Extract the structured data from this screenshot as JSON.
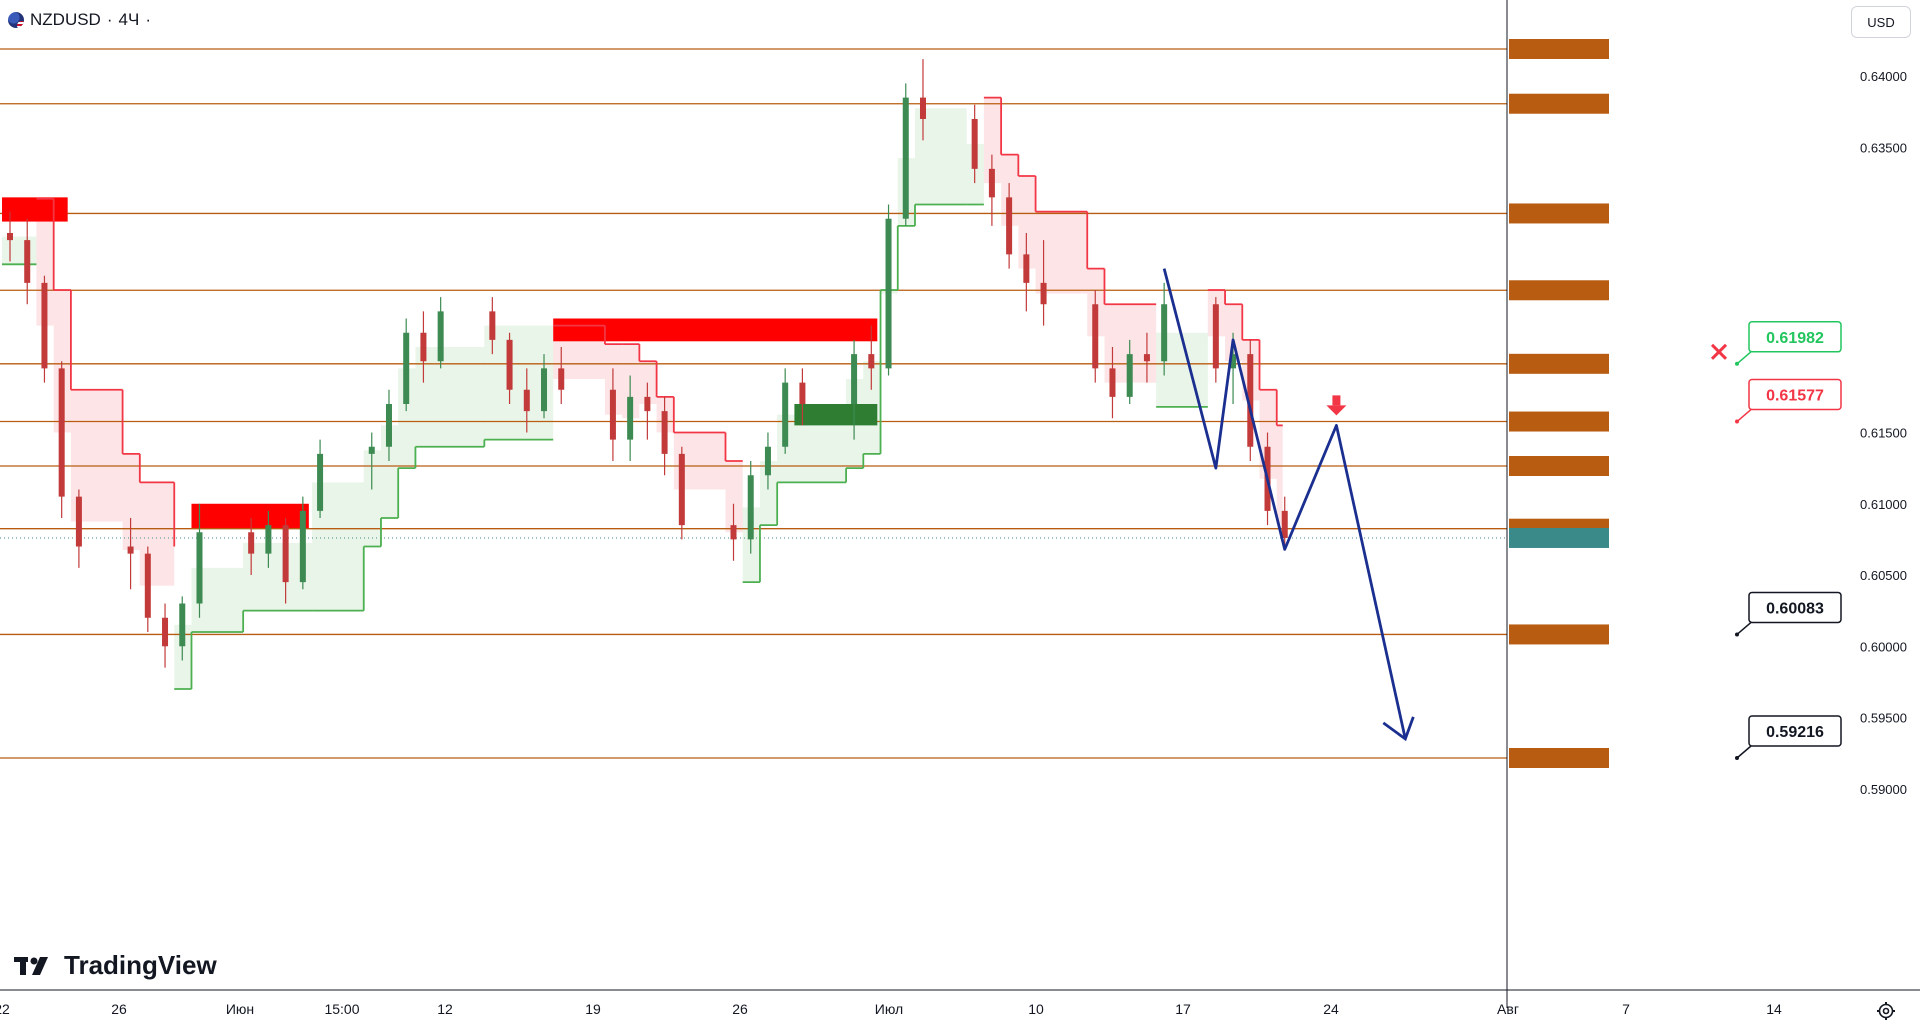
{
  "header": {
    "symbol": "NZDUSD",
    "separator": "·",
    "interval": "4Ч",
    "trailing_dot": "·"
  },
  "currency_button": {
    "label": "USD"
  },
  "branding": {
    "name": "TradingView"
  },
  "icons": {
    "settings": "gear-icon",
    "flag": "nz-us-flag-icon",
    "logo": "tradingview-logo-icon",
    "marker_x": "cross-icon",
    "marker_down": "down-arrow-icon"
  },
  "colors": {
    "level_line": "#b85c11",
    "level_badge": "#b85c11",
    "candle_up": "#3d8a52",
    "candle_down": "#c23a3a",
    "stop_up": "#4caf50",
    "stop_down": "#f23645",
    "fill_up": "rgba(76,175,80,0.13)",
    "fill_down": "rgba(242,54,69,0.13)",
    "zone_red": "#ff0000",
    "zone_green": "#2e7d32",
    "path_blue": "#1a2f8f",
    "current_price": "#3a8a8a"
  },
  "chart_data": {
    "type": "candlestick",
    "symbol": "NZDUSD",
    "timeframe": "4Ч",
    "currency": "USD",
    "ylim": [
      0.5875,
      0.6435
    ],
    "y_ticks": [
      0.64,
      0.635,
      0.615,
      0.61,
      0.605,
      0.6,
      0.595,
      0.59
    ],
    "y_tick_labels": [
      "0.64000",
      "0.63500",
      "0.61500",
      "0.61000",
      "0.60500",
      "0.60000",
      "0.59500",
      "0.59000"
    ],
    "x_labels": [
      "22",
      "26",
      "Июн",
      "15:00",
      "12",
      "19",
      "26",
      "Июл",
      "10",
      "17",
      "24",
      "Авг",
      "7",
      "14"
    ],
    "levels": [
      {
        "value": 0.64191,
        "label": "0.64191"
      },
      {
        "value": 0.63807,
        "label": "0.63807"
      },
      {
        "value": 0.63037,
        "label": "0.63037"
      },
      {
        "value": 0.62498,
        "label": "0.62498"
      },
      {
        "value": 0.61982,
        "label": "0.61982"
      },
      {
        "value": 0.61577,
        "label": "0.61577"
      },
      {
        "value": 0.61265,
        "label": "0.61265"
      },
      {
        "value": 0.60825,
        "label": "0.60825"
      },
      {
        "value": 0.60083,
        "label": "0.60083"
      },
      {
        "value": 0.59216,
        "label": "0.59216"
      }
    ],
    "current_price": {
      "value": 0.6076,
      "label": "0.60760"
    },
    "callouts": [
      {
        "label": "0.61982",
        "value": 0.61982,
        "style": "green",
        "marker": "cross"
      },
      {
        "label": "0.61577",
        "value": 0.61577,
        "style": "red"
      },
      {
        "label": "0.60083",
        "value": 0.60083,
        "style": "black"
      },
      {
        "label": "0.59216",
        "value": 0.59216,
        "style": "black"
      }
    ],
    "zones": [
      {
        "color": "red",
        "from_date": "May 22",
        "to_date": "May 25",
        "y_range": [
          0.6298,
          0.6315
        ]
      },
      {
        "color": "red",
        "from_date": "Jun 02",
        "to_date": "Jun 08",
        "y_range": [
          0.6083,
          0.61
        ]
      },
      {
        "color": "red",
        "from_date": "Jun 23",
        "to_date": "Jul 11",
        "y_range": [
          0.6214,
          0.623
        ]
      },
      {
        "color": "green",
        "from_date": "Jul 07",
        "to_date": "Jul 11",
        "y_range": [
          0.6155,
          0.617
        ]
      }
    ],
    "candles": [
      {
        "date": "May 22",
        "o": 0.629,
        "h": 0.6305,
        "l": 0.627,
        "c": 0.6285
      },
      {
        "date": "May 23",
        "o": 0.6285,
        "h": 0.63,
        "l": 0.624,
        "c": 0.6255
      },
      {
        "date": "May 24",
        "o": 0.6255,
        "h": 0.626,
        "l": 0.6185,
        "c": 0.6195
      },
      {
        "date": "May 25",
        "o": 0.6195,
        "h": 0.62,
        "l": 0.609,
        "c": 0.6105
      },
      {
        "date": "May 26",
        "o": 0.6105,
        "h": 0.611,
        "l": 0.6055,
        "c": 0.607
      },
      {
        "date": "May 29",
        "o": 0.607,
        "h": 0.609,
        "l": 0.604,
        "c": 0.6065
      },
      {
        "date": "May 30",
        "o": 0.6065,
        "h": 0.607,
        "l": 0.601,
        "c": 0.602
      },
      {
        "date": "May 31",
        "o": 0.602,
        "h": 0.603,
        "l": 0.5985,
        "c": 0.6
      },
      {
        "date": "Jun 01",
        "o": 0.6,
        "h": 0.6035,
        "l": 0.599,
        "c": 0.603
      },
      {
        "date": "Jun 02",
        "o": 0.603,
        "h": 0.61,
        "l": 0.602,
        "c": 0.608
      },
      {
        "date": "Jun 05",
        "o": 0.608,
        "h": 0.609,
        "l": 0.605,
        "c": 0.6065
      },
      {
        "date": "Jun 06",
        "o": 0.6065,
        "h": 0.6095,
        "l": 0.6055,
        "c": 0.6085
      },
      {
        "date": "Jun 07",
        "o": 0.6085,
        "h": 0.609,
        "l": 0.603,
        "c": 0.6045
      },
      {
        "date": "Jun 08",
        "o": 0.6045,
        "h": 0.6105,
        "l": 0.604,
        "c": 0.6095
      },
      {
        "date": "Jun 09",
        "o": 0.6095,
        "h": 0.6145,
        "l": 0.609,
        "c": 0.6135
      },
      {
        "date": "Jun 12",
        "o": 0.6135,
        "h": 0.615,
        "l": 0.611,
        "c": 0.614
      },
      {
        "date": "Jun 13",
        "o": 0.614,
        "h": 0.618,
        "l": 0.613,
        "c": 0.617
      },
      {
        "date": "Jun 14",
        "o": 0.617,
        "h": 0.623,
        "l": 0.6165,
        "c": 0.622
      },
      {
        "date": "Jun 15",
        "o": 0.622,
        "h": 0.6235,
        "l": 0.6185,
        "c": 0.62
      },
      {
        "date": "Jun 16",
        "o": 0.62,
        "h": 0.6245,
        "l": 0.6195,
        "c": 0.6235
      },
      {
        "date": "Jun 19",
        "o": 0.6235,
        "h": 0.6245,
        "l": 0.6205,
        "c": 0.6215
      },
      {
        "date": "Jun 20",
        "o": 0.6215,
        "h": 0.622,
        "l": 0.617,
        "c": 0.618
      },
      {
        "date": "Jun 21",
        "o": 0.618,
        "h": 0.6195,
        "l": 0.615,
        "c": 0.6165
      },
      {
        "date": "Jun 22",
        "o": 0.6165,
        "h": 0.6205,
        "l": 0.616,
        "c": 0.6195
      },
      {
        "date": "Jun 23",
        "o": 0.6195,
        "h": 0.621,
        "l": 0.617,
        "c": 0.618
      },
      {
        "date": "Jun 26",
        "o": 0.618,
        "h": 0.6195,
        "l": 0.613,
        "c": 0.6145
      },
      {
        "date": "Jun 27",
        "o": 0.6145,
        "h": 0.619,
        "l": 0.613,
        "c": 0.6175
      },
      {
        "date": "Jun 28",
        "o": 0.6175,
        "h": 0.6185,
        "l": 0.6145,
        "c": 0.6165
      },
      {
        "date": "Jun 29",
        "o": 0.6165,
        "h": 0.6175,
        "l": 0.612,
        "c": 0.6135
      },
      {
        "date": "Jun 30",
        "o": 0.6135,
        "h": 0.614,
        "l": 0.6075,
        "c": 0.6085
      },
      {
        "date": "Jul 03",
        "o": 0.6085,
        "h": 0.61,
        "l": 0.606,
        "c": 0.6075
      },
      {
        "date": "Jul 04",
        "o": 0.6075,
        "h": 0.613,
        "l": 0.6065,
        "c": 0.612
      },
      {
        "date": "Jul 05",
        "o": 0.612,
        "h": 0.615,
        "l": 0.611,
        "c": 0.614
      },
      {
        "date": "Jul 06",
        "o": 0.614,
        "h": 0.6195,
        "l": 0.6135,
        "c": 0.6185
      },
      {
        "date": "Jul 07",
        "o": 0.6185,
        "h": 0.6195,
        "l": 0.6155,
        "c": 0.617
      },
      {
        "date": "Jul 10",
        "o": 0.617,
        "h": 0.6215,
        "l": 0.6145,
        "c": 0.6205
      },
      {
        "date": "Jul 11",
        "o": 0.6205,
        "h": 0.6225,
        "l": 0.618,
        "c": 0.6195
      },
      {
        "date": "Jul 12",
        "o": 0.6195,
        "h": 0.631,
        "l": 0.619,
        "c": 0.63
      },
      {
        "date": "Jul 13",
        "o": 0.63,
        "h": 0.6395,
        "l": 0.6295,
        "c": 0.6385
      },
      {
        "date": "Jul 14",
        "o": 0.6385,
        "h": 0.6412,
        "l": 0.6355,
        "c": 0.637
      },
      {
        "date": "Jul 17",
        "o": 0.637,
        "h": 0.638,
        "l": 0.6325,
        "c": 0.6335
      },
      {
        "date": "Jul 18",
        "o": 0.6335,
        "h": 0.6345,
        "l": 0.6295,
        "c": 0.6315
      },
      {
        "date": "Jul 19",
        "o": 0.6315,
        "h": 0.6325,
        "l": 0.6265,
        "c": 0.6275
      },
      {
        "date": "Jul 20",
        "o": 0.6275,
        "h": 0.629,
        "l": 0.6235,
        "c": 0.6255
      },
      {
        "date": "Jul 21",
        "o": 0.6255,
        "h": 0.6285,
        "l": 0.6225,
        "c": 0.624
      },
      {
        "date": "Jul 24",
        "o": 0.624,
        "h": 0.625,
        "l": 0.6185,
        "c": 0.6195
      },
      {
        "date": "Jul 25",
        "o": 0.6195,
        "h": 0.621,
        "l": 0.616,
        "c": 0.6175
      },
      {
        "date": "Jul 26",
        "o": 0.6175,
        "h": 0.6215,
        "l": 0.617,
        "c": 0.6205
      },
      {
        "date": "Jul 27",
        "o": 0.6205,
        "h": 0.622,
        "l": 0.6185,
        "c": 0.62
      },
      {
        "date": "Jul 28",
        "o": 0.62,
        "h": 0.6255,
        "l": 0.619,
        "c": 0.624
      },
      {
        "date": "Jul 31",
        "o": 0.624,
        "h": 0.6245,
        "l": 0.6185,
        "c": 0.6195
      },
      {
        "date": "Aug 01",
        "o": 0.6195,
        "h": 0.622,
        "l": 0.617,
        "c": 0.6205
      },
      {
        "date": "Aug 02",
        "o": 0.6205,
        "h": 0.6215,
        "l": 0.613,
        "c": 0.614
      },
      {
        "date": "Aug 03",
        "o": 0.614,
        "h": 0.615,
        "l": 0.6085,
        "c": 0.6095
      },
      {
        "date": "Aug 04",
        "o": 0.6095,
        "h": 0.6105,
        "l": 0.607,
        "c": 0.6076
      }
    ],
    "trailing_stop": {
      "note": "step line around price",
      "points": [
        {
          "date": "May 22",
          "v": 0.6268,
          "side": "up"
        },
        {
          "date": "May 24",
          "v": 0.6314,
          "side": "down"
        },
        {
          "date": "May 25",
          "v": 0.625,
          "side": "down"
        },
        {
          "date": "May 26",
          "v": 0.618,
          "side": "down"
        },
        {
          "date": "May 29",
          "v": 0.6135,
          "side": "down"
        },
        {
          "date": "May 30",
          "v": 0.6115,
          "side": "down"
        },
        {
          "date": "Jun 01",
          "v": 0.607,
          "side": "down"
        },
        {
          "date": "Jun 01",
          "v": 0.597,
          "side": "up"
        },
        {
          "date": "Jun 02",
          "v": 0.601,
          "side": "up"
        },
        {
          "date": "Jun 05",
          "v": 0.6025,
          "side": "up"
        },
        {
          "date": "Jun 09",
          "v": 0.6025,
          "side": "up"
        },
        {
          "date": "Jun 12",
          "v": 0.607,
          "side": "up"
        },
        {
          "date": "Jun 13",
          "v": 0.609,
          "side": "up"
        },
        {
          "date": "Jun 14",
          "v": 0.6125,
          "side": "up"
        },
        {
          "date": "Jun 15",
          "v": 0.614,
          "side": "up"
        },
        {
          "date": "Jun 19",
          "v": 0.6145,
          "side": "up"
        },
        {
          "date": "Jun 23",
          "v": 0.6145,
          "side": "up"
        },
        {
          "date": "Jun 23",
          "v": 0.6225,
          "side": "down"
        },
        {
          "date": "Jun 26",
          "v": 0.6212,
          "side": "down"
        },
        {
          "date": "Jun 27",
          "v": 0.6212,
          "side": "down"
        },
        {
          "date": "Jun 28",
          "v": 0.62,
          "side": "down"
        },
        {
          "date": "Jun 29",
          "v": 0.6175,
          "side": "down"
        },
        {
          "date": "Jun 30",
          "v": 0.615,
          "side": "down"
        },
        {
          "date": "Jul 03",
          "v": 0.613,
          "side": "down"
        },
        {
          "date": "Jul 04",
          "v": 0.613,
          "side": "down"
        },
        {
          "date": "Jul 04",
          "v": 0.6045,
          "side": "up"
        },
        {
          "date": "Jul 05",
          "v": 0.6085,
          "side": "up"
        },
        {
          "date": "Jul 06",
          "v": 0.6115,
          "side": "up"
        },
        {
          "date": "Jul 10",
          "v": 0.6125,
          "side": "up"
        },
        {
          "date": "Jul 11",
          "v": 0.6135,
          "side": "up"
        },
        {
          "date": "Jul 12",
          "v": 0.625,
          "side": "up"
        },
        {
          "date": "Jul 13",
          "v": 0.6295,
          "side": "up"
        },
        {
          "date": "Jul 14",
          "v": 0.631,
          "side": "up"
        },
        {
          "date": "Jul 17",
          "v": 0.631,
          "side": "up"
        },
        {
          "date": "Jul 18",
          "v": 0.6385,
          "side": "down"
        },
        {
          "date": "Jul 19",
          "v": 0.6345,
          "side": "down"
        },
        {
          "date": "Jul 20",
          "v": 0.633,
          "side": "down"
        },
        {
          "date": "Jul 21",
          "v": 0.6305,
          "side": "down"
        },
        {
          "date": "Jul 24",
          "v": 0.6265,
          "side": "down"
        },
        {
          "date": "Jul 25",
          "v": 0.624,
          "side": "down"
        },
        {
          "date": "Jul 28",
          "v": 0.624,
          "side": "down"
        },
        {
          "date": "Jul 28",
          "v": 0.6168,
          "side": "up"
        },
        {
          "date": "Jul 31",
          "v": 0.625,
          "side": "down"
        },
        {
          "date": "Aug 01",
          "v": 0.624,
          "side": "down"
        },
        {
          "date": "Aug 02",
          "v": 0.6215,
          "side": "down"
        },
        {
          "date": "Aug 03",
          "v": 0.618,
          "side": "down"
        },
        {
          "date": "Aug 04",
          "v": 0.6155,
          "side": "down"
        }
      ]
    },
    "projection_path": {
      "points": [
        {
          "date": "Jul 28",
          "v": 0.6265
        },
        {
          "date": "Jul 31",
          "v": 0.6125
        },
        {
          "date": "Aug 01",
          "v": 0.6215
        },
        {
          "date": "Aug 04",
          "v": 0.6068
        },
        {
          "date": "Aug 07",
          "v": 0.6155
        },
        {
          "date": "Aug 11",
          "v": 0.5935
        }
      ]
    }
  }
}
